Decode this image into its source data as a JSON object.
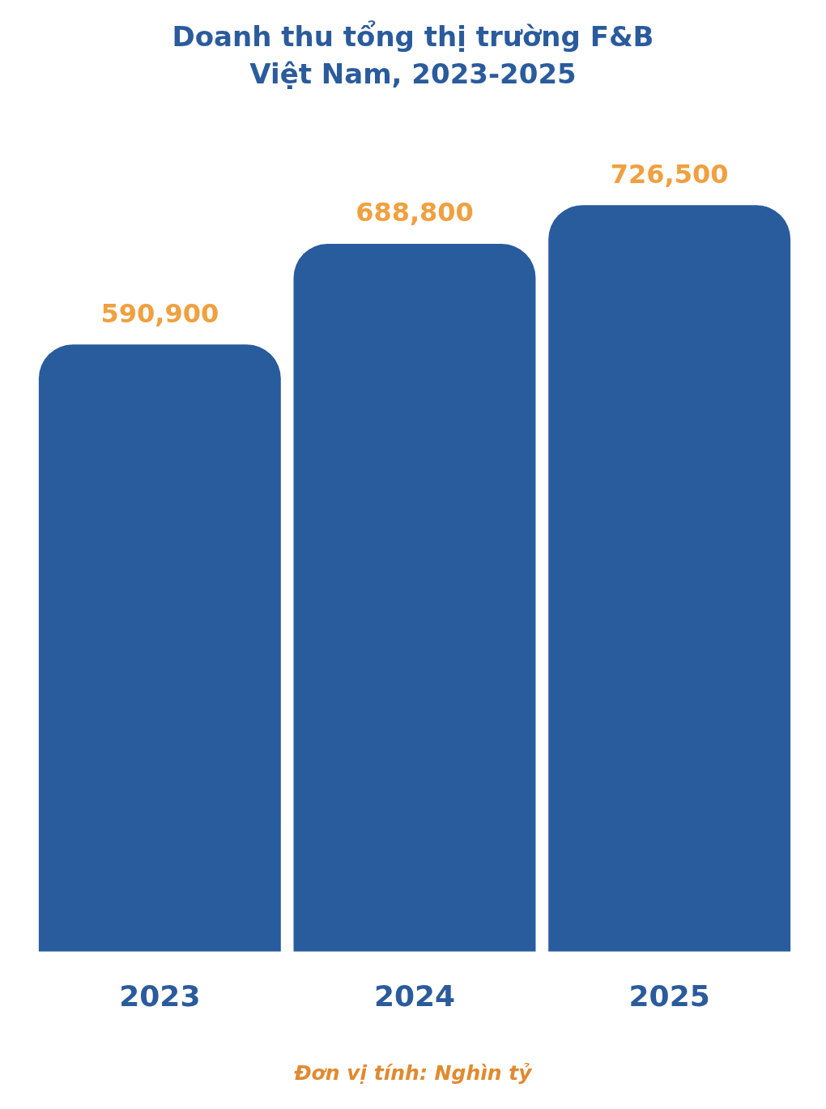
{
  "chart_data": {
    "type": "bar",
    "title": "Doanh thu tổng thị trường F&B\nViệt Nam, 2023-2025",
    "categories": [
      "2023",
      "2024",
      "2025"
    ],
    "values": [
      590900,
      688800,
      726500
    ],
    "value_labels": [
      "590,900",
      "688,800",
      "726,500"
    ],
    "color": "#285c9c",
    "tick_labels": "x",
    "grid": false,
    "legend": false,
    "annotations": [
      "Đơn vị tính: Nghìn tỷ"
    ]
  }
}
